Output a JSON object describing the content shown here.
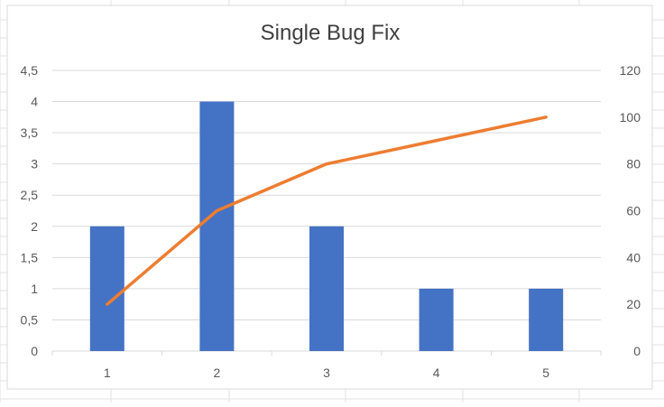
{
  "chart_data": {
    "type": "bar+line",
    "title": "Single Bug Fix",
    "categories": [
      "1",
      "2",
      "3",
      "4",
      "5"
    ],
    "series": [
      {
        "type": "bar",
        "axis": "left",
        "values": [
          2,
          4,
          2,
          1,
          1
        ],
        "color": "#4472C4"
      },
      {
        "type": "line",
        "axis": "right",
        "values": [
          20,
          60,
          80,
          90,
          100
        ],
        "color": "#ED7D31"
      }
    ],
    "y_left": {
      "ylim": [
        0,
        4.5
      ],
      "ticks": [
        0,
        0.5,
        1,
        1.5,
        2,
        2.5,
        3,
        3.5,
        4,
        4.5
      ],
      "tick_labels": [
        "0",
        "0,5",
        "1",
        "1,5",
        "2",
        "2,5",
        "3",
        "3,5",
        "4",
        "4,5"
      ]
    },
    "y_right": {
      "ylim": [
        0,
        120
      ],
      "ticks": [
        0,
        20,
        40,
        60,
        80,
        100,
        120
      ],
      "tick_labels": [
        "0",
        "20",
        "40",
        "60",
        "80",
        "100",
        "120"
      ]
    },
    "xlabel": "",
    "ylabel": "",
    "grid": true,
    "legend": "none"
  },
  "colors": {
    "gridline": "#d9d9d9",
    "sheet_grid": "#e2e2e2",
    "text": "#595959",
    "title": "#404040",
    "bar": "#4472C4",
    "line": "#ED7D31"
  }
}
